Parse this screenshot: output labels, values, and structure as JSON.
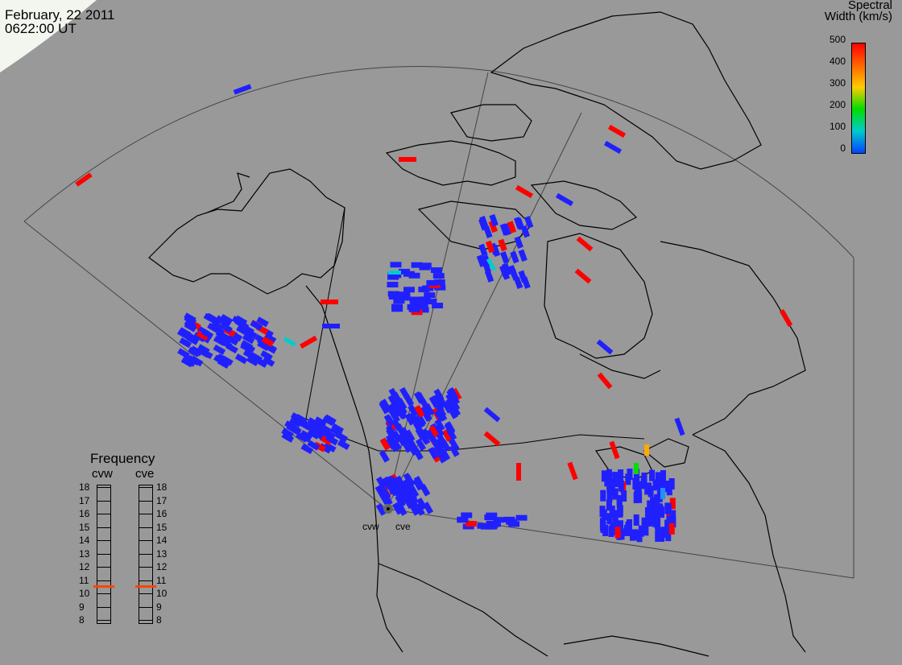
{
  "header": {
    "date": "February, 22 2011",
    "time": "0622:00 UT"
  },
  "colorbar": {
    "title_line1": "Spectral",
    "title_line2": "Width (km/s)",
    "ticks": [
      "500",
      "400",
      "300",
      "200",
      "100",
      "0"
    ],
    "colors": [
      "#ff0000",
      "#ff6600",
      "#ffcc00",
      "#00dd00",
      "#00cccc",
      "#0044ff"
    ]
  },
  "frequency_panel": {
    "title": "Frequency",
    "radars": [
      {
        "name": "cvw",
        "current_mhz": 10.6
      },
      {
        "name": "cve",
        "current_mhz": 10.6
      }
    ],
    "ticks": [
      "18",
      "17",
      "16",
      "15",
      "14",
      "13",
      "12",
      "11",
      "10",
      "9",
      "8"
    ],
    "marker_color": "#ff4400"
  },
  "radar_site_labels": [
    "cvw",
    "cve"
  ],
  "colors": {
    "background": "#999999",
    "map_lines": "#000000",
    "fov_outline": "#444444",
    "scatter_low": "#2020ff",
    "scatter_high": "#ff0000",
    "scatter_mid": "#00cccc"
  }
}
